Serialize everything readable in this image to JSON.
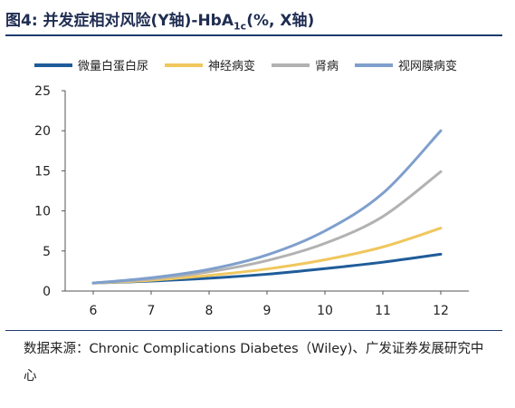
{
  "title": {
    "prefix": "图4:  并发症相对风险(Y轴)-HbA",
    "subscript": "1c",
    "suffix": "(%, X轴)"
  },
  "source": "数据来源：Chronic Complications Diabetes（Wiley)、广发证券发展研究中心",
  "chart_data": {
    "type": "line",
    "x": [
      6,
      7,
      8,
      9,
      10,
      11,
      12
    ],
    "xticks": [
      "6",
      "7",
      "8",
      "9",
      "10",
      "11",
      "12"
    ],
    "yticks": [
      "0",
      "5",
      "10",
      "15",
      "20",
      "25"
    ],
    "xlim": [
      6,
      12
    ],
    "ylim": [
      0,
      25
    ],
    "grid": false,
    "legend_position": "top",
    "series": [
      {
        "name": "微量白蛋白尿",
        "color": "#1f5c99",
        "values": [
          1.0,
          1.25,
          1.6,
          2.1,
          2.8,
          3.6,
          4.6
        ]
      },
      {
        "name": "神经病变",
        "color": "#f0c75e",
        "values": [
          1.0,
          1.35,
          1.95,
          2.75,
          3.9,
          5.5,
          7.85
        ]
      },
      {
        "name": "肾病",
        "color": "#b2b2b2",
        "values": [
          1.0,
          1.5,
          2.4,
          3.8,
          5.95,
          9.3,
          14.9
        ]
      },
      {
        "name": "视网膜病变",
        "color": "#7f9fcc",
        "values": [
          1.0,
          1.65,
          2.7,
          4.5,
          7.5,
          12.2,
          20.0
        ]
      }
    ]
  }
}
